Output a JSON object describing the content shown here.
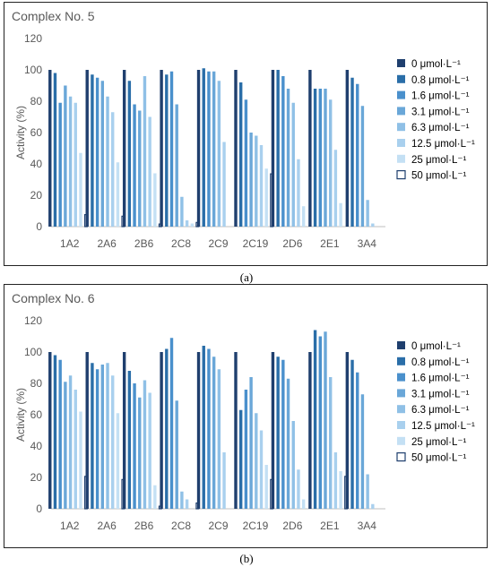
{
  "colors": {
    "series": [
      "#1f3f6e",
      "#2a6ea8",
      "#4a90cc",
      "#6aa7d8",
      "#8fc0e6",
      "#a9d0ee",
      "#c4e0f4",
      "#ffffff"
    ],
    "outline_series": "#1f3f6e",
    "axis": "#bfbfbf",
    "text": "#595959"
  },
  "chart_data": [
    {
      "type": "bar",
      "title": "Complex No. 5",
      "ylabel": "Activity (%)",
      "ylim": [
        0,
        120
      ],
      "yticks": [
        0,
        20,
        40,
        60,
        80,
        100,
        120
      ],
      "legend_position": "right",
      "categories": [
        "1A2",
        "2A6",
        "2B6",
        "2C8",
        "2C9",
        "2C19",
        "2D6",
        "2E1",
        "3A4"
      ],
      "series": [
        {
          "name": "0 μmol·L⁻¹",
          "values": [
            100,
            100,
            100,
            100,
            100,
            100,
            100,
            100,
            100
          ]
        },
        {
          "name": "0.8 μmol·L⁻¹",
          "values": [
            98,
            97,
            93,
            97,
            101,
            92,
            100,
            88,
            95
          ]
        },
        {
          "name": "1.6 μmol·L⁻¹",
          "values": [
            79,
            95,
            78,
            99,
            99,
            81,
            96,
            88,
            91
          ]
        },
        {
          "name": "3.1 μmol·L⁻¹",
          "values": [
            90,
            93,
            74,
            78,
            99,
            60,
            88,
            88,
            77
          ]
        },
        {
          "name": "6.3 μmol·L⁻¹",
          "values": [
            83,
            83,
            96,
            19,
            93,
            58,
            79,
            81,
            17
          ]
        },
        {
          "name": "12.5 μmol·L⁻¹",
          "values": [
            79,
            73,
            70,
            4,
            54,
            52,
            43,
            49,
            2
          ]
        },
        {
          "name": "25 μmol·L⁻¹",
          "values": [
            47,
            41,
            34,
            2,
            0,
            37,
            13,
            15,
            0
          ]
        },
        {
          "name": "50 μmol·L⁻¹",
          "values": [
            8,
            7,
            2,
            3,
            0,
            34,
            0,
            0,
            0
          ]
        }
      ]
    },
    {
      "type": "bar",
      "title": "Complex No. 6",
      "ylabel": "Activity (%)",
      "ylim": [
        0,
        120
      ],
      "yticks": [
        0,
        20,
        40,
        60,
        80,
        100,
        120
      ],
      "legend_position": "right",
      "categories": [
        "1A2",
        "2A6",
        "2B6",
        "2C8",
        "2C9",
        "2C19",
        "2D6",
        "2E1",
        "3A4"
      ],
      "series": [
        {
          "name": "0 μmol·L⁻¹",
          "values": [
            100,
            100,
            100,
            100,
            100,
            100,
            100,
            100,
            100
          ]
        },
        {
          "name": "0.8 μmol·L⁻¹",
          "values": [
            98,
            93,
            88,
            102,
            104,
            63,
            97,
            114,
            95
          ]
        },
        {
          "name": "1.6 μmol·L⁻¹",
          "values": [
            95,
            89,
            80,
            109,
            102,
            76,
            95,
            110,
            87
          ]
        },
        {
          "name": "3.1 μmol·L⁻¹",
          "values": [
            81,
            92,
            71,
            69,
            97,
            84,
            83,
            113,
            73
          ]
        },
        {
          "name": "6.3 μmol·L⁻¹",
          "values": [
            85,
            93,
            82,
            11,
            89,
            61,
            56,
            84,
            22
          ]
        },
        {
          "name": "12.5 μmol·L⁻¹",
          "values": [
            76,
            85,
            74,
            6,
            36,
            50,
            25,
            36,
            3
          ]
        },
        {
          "name": "25 μmol·L⁻¹",
          "values": [
            62,
            61,
            15,
            0,
            0,
            28,
            6,
            24,
            0
          ]
        },
        {
          "name": "50 μmol·L⁻¹",
          "values": [
            21,
            19,
            2,
            4,
            0,
            19,
            0,
            21,
            0
          ]
        }
      ]
    }
  ],
  "captions": [
    "(a)",
    "(b)"
  ]
}
